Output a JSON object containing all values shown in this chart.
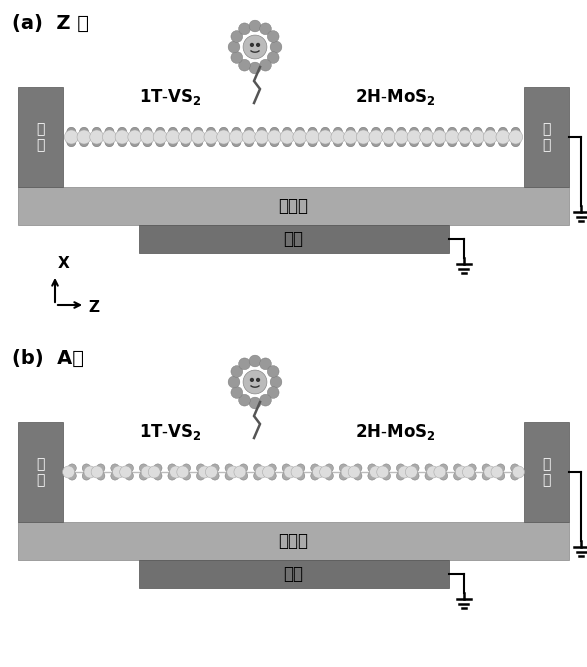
{
  "fig_width": 5.87,
  "fig_height": 6.67,
  "bg_color": "#ffffff",
  "gray_electrode": "#787878",
  "gray_dielectric": "#999999",
  "gray_gate": "#707070",
  "gray_channel_base": "#b0b0b0",
  "panel_a_label": "(a)  Z 型",
  "panel_b_label": "(b)  A型",
  "label_dielectric": "电介质",
  "label_gate": "栅极",
  "label_drain": "漏\n极",
  "label_source": "源\n极"
}
